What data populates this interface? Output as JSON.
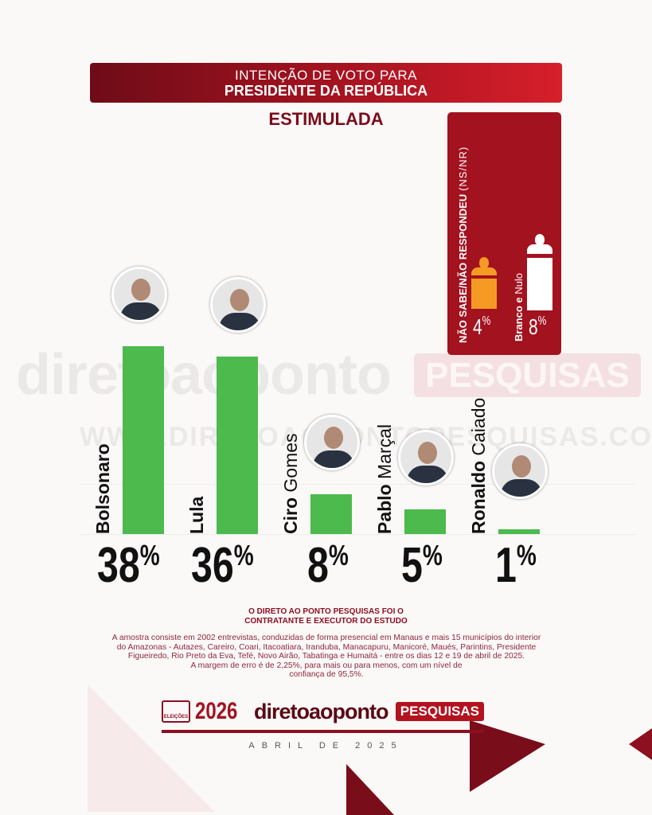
{
  "header": {
    "line1": "INTENÇÃO DE VOTO PARA",
    "line2": "PRESIDENTE DA REPÚBLICA",
    "subtitle": "ESTIMULADA"
  },
  "side_box": {
    "title_bold": "NÃO SABE/NÃO RESPONDEU",
    "title_abbr": "(NS/NR)",
    "ns_value": "4",
    "ns_color": "#f59a23",
    "bn_label_bold": "Branco e",
    "bn_label_light": "Nulo",
    "bn_value": "8",
    "bn_color": "#ffffff",
    "percent_sign": "%"
  },
  "chart_data": {
    "type": "bar",
    "title": "INTENÇÃO DE VOTO PARA PRESIDENTE DA REPÚBLICA - ESTIMULADA",
    "categories": [
      "Bolsonaro",
      "Lula",
      "Ciro Gomes",
      "Pablo Marçal",
      "Ronaldo Caiado"
    ],
    "name_parts": [
      [
        "Bolsonaro",
        ""
      ],
      [
        "Lula",
        ""
      ],
      [
        "Ciro",
        "Gomes"
      ],
      [
        "Pablo",
        "Marçal"
      ],
      [
        "Ronaldo",
        "Caiado"
      ]
    ],
    "values": [
      38,
      36,
      8,
      5,
      1
    ],
    "labels": [
      "38",
      "36",
      "8",
      "5",
      "1"
    ],
    "unit": "%",
    "ylim": [
      0,
      40
    ],
    "bar_color": "#4cba4c",
    "other": [
      {
        "name": "Não sabe/Não respondeu (NS/NR)",
        "value": 4
      },
      {
        "name": "Branco e Nulo",
        "value": 8
      }
    ]
  },
  "watermark": {
    "brand": "diretoaoponto",
    "tag": "PESQUISAS",
    "url": "WWW.DIRETOAOPONTOPESQUISAS.COM.BR"
  },
  "footer": {
    "headline": "O DIRETO AO PONTO PESQUISAS FOI O CONTRATANTE E EXECUTOR DO ESTUDO",
    "methodology": "A amostra consiste em 2002 entrevistas, conduzidas de forma presencial em Manaus e mais 15 municípios do interior do Amazonas - Autazes, Careiro, Coari, Itacoatiara, Iranduba, Manacapuru, Manicoré, Maués, Parintins, Presidente Figueiredo, Rio Preto da Eva, Tefé, Novo Airão, Tabatinga e Humaitá - entre os dias 12 e 19 de abril de 2025.",
    "margin": "A margem de erro é de 2,25%, para mais ou para menos, com um nível de confiança de 95,5%.",
    "logo_box": "ELEIÇÕES",
    "logo_year": "2026",
    "logo_brand": "diretoaoponto",
    "logo_tag": "PESQUISAS",
    "date": "ABRIL DE 2025"
  }
}
